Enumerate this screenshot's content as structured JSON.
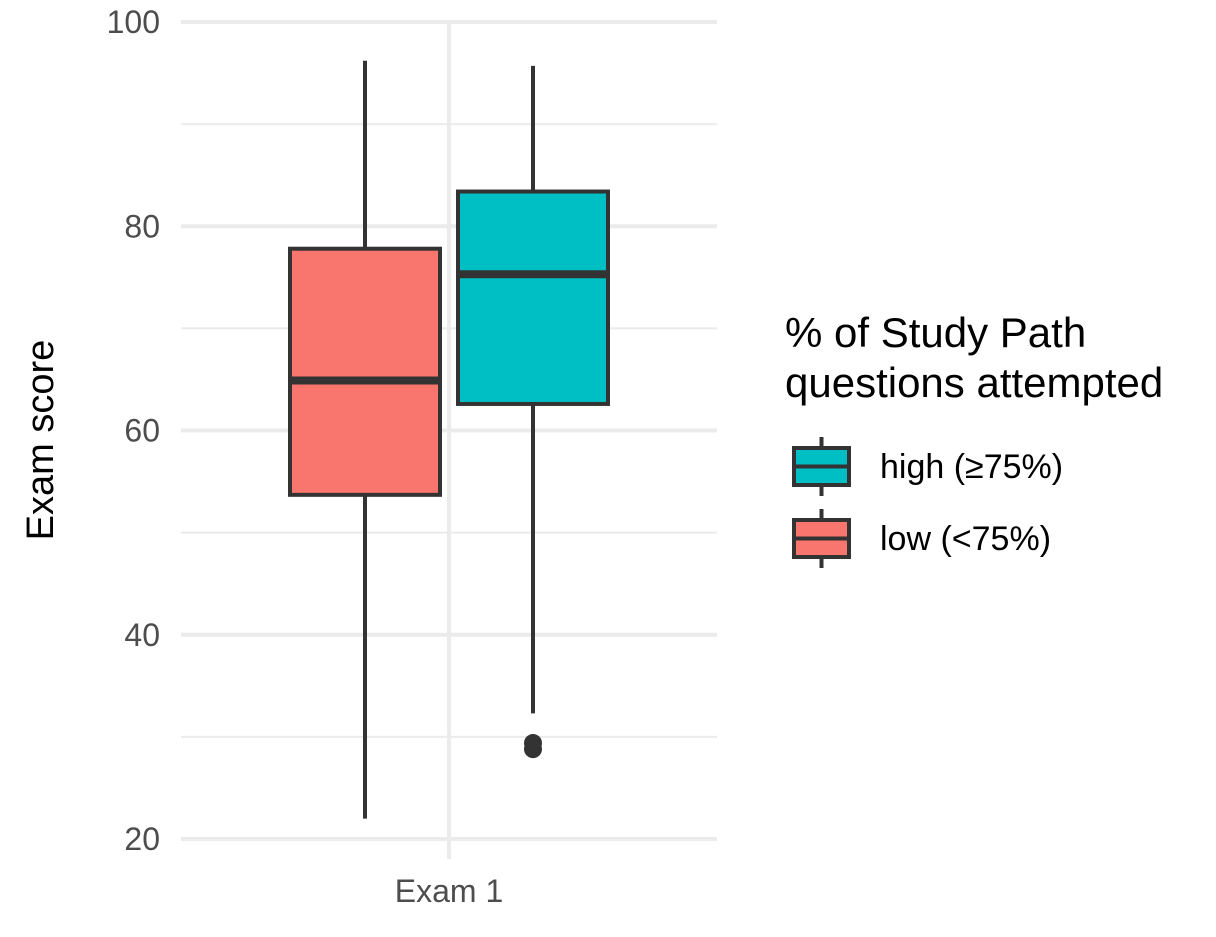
{
  "chart_data": {
    "type": "boxplot",
    "ylabel": "Exam score",
    "ylim": [
      20,
      100
    ],
    "y_ticks": [
      "20",
      "40",
      "60",
      "80",
      "100"
    ],
    "categories": [
      "Exam 1"
    ],
    "legend": {
      "title_lines": [
        "% of Study Path",
        "questions attempted"
      ],
      "entries": [
        {
          "label": "high (≥75%)",
          "color": "#00BFC4"
        },
        {
          "label": "low (<75%)",
          "color": "#F8766D"
        }
      ],
      "position": "right"
    },
    "grid": true,
    "series": [
      {
        "name": "low (<75%)",
        "color": "#F8766D",
        "category": "Exam 1",
        "whisker_low": 22,
        "q1": 53.7,
        "median": 64.9,
        "q3": 77.8,
        "whisker_high": 96.2,
        "outliers": []
      },
      {
        "name": "high (≥75%)",
        "color": "#00BFC4",
        "category": "Exam 1",
        "whisker_low": 32.3,
        "q1": 62.6,
        "median": 75.3,
        "q3": 83.4,
        "whisker_high": 95.7,
        "outliers": [
          29.4,
          28.8
        ]
      }
    ]
  }
}
